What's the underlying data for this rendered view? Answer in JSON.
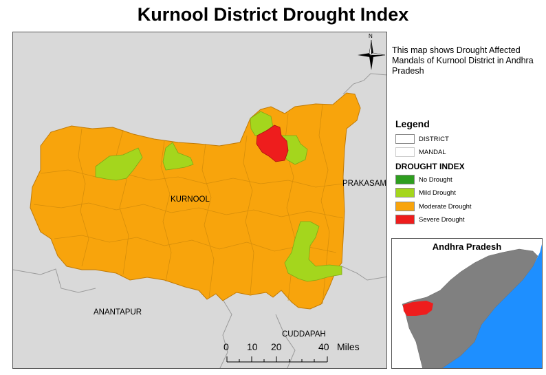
{
  "title": "Kurnool District Drought Index",
  "description": "This map shows Drought Affected Mandals of Kurnool District in Andhra Pradesh",
  "north_label": "N",
  "map_labels": {
    "district": "KURNOOL",
    "east": "PRAKASAM",
    "south_west": "ANANTAPUR",
    "south": "CUDDAPAH"
  },
  "legend": {
    "title": "Legend",
    "boundaries": [
      {
        "label": "DISTRICT",
        "color": "#ffffff"
      },
      {
        "label": "MANDAL",
        "color": "#ffffff"
      }
    ],
    "index_title": "DROUGHT INDEX",
    "classes": [
      {
        "label": "No Drought",
        "color": "#2e9e1f"
      },
      {
        "label": "Mild Drought",
        "color": "#a4d61d"
      },
      {
        "label": "Moderate Drought",
        "color": "#f8a40c"
      },
      {
        "label": "Severe Drought",
        "color": "#ee1d1d"
      }
    ]
  },
  "inset": {
    "title": "Andhra Pradesh",
    "state_color": "#808080",
    "sea_color": "#1e8fff",
    "highlight_color": "#ee1d1d"
  },
  "scale_bar": {
    "ticks": [
      "0",
      "10",
      "20",
      "40"
    ],
    "unit": "Miles"
  },
  "colors": {
    "background_land": "#d9d9d9",
    "moderate": "#f8a40c",
    "mild": "#a4d61d",
    "severe": "#ee1d1d"
  }
}
